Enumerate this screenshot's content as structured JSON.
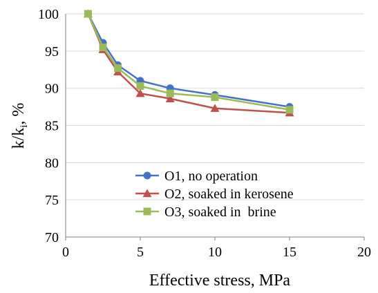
{
  "chart_data": {
    "type": "line",
    "title": "",
    "xlabel": "Effective stress, MPa",
    "ylabel_main": "k/k",
    "ylabel_sub": "i",
    "ylabel_unit": ", %",
    "xlim": [
      0,
      20
    ],
    "ylim": [
      70,
      100
    ],
    "xticks": [
      0,
      5,
      10,
      15,
      20
    ],
    "yticks": [
      70,
      75,
      80,
      85,
      90,
      95,
      100
    ],
    "grid": "horizontal",
    "legend_position": "bottom-left",
    "series": [
      {
        "name": "O1, no operation",
        "color": "#4472c4",
        "marker": "circle",
        "x": [
          1.5,
          2.5,
          3.5,
          5,
          7,
          10,
          15
        ],
        "y": [
          100,
          96.1,
          93.1,
          91.0,
          90.0,
          89.1,
          87.5
        ]
      },
      {
        "name": "O2, soaked in kerosene",
        "color": "#c0504d",
        "marker": "triangle",
        "x": [
          1.5,
          2.5,
          3.5,
          5,
          7,
          10,
          15
        ],
        "y": [
          100,
          95.2,
          92.2,
          89.3,
          88.6,
          87.3,
          86.7
        ]
      },
      {
        "name": "O3, soaked in  brine",
        "color": "#9bbb59",
        "marker": "square",
        "x": [
          1.5,
          2.5,
          3.5,
          5,
          7,
          10,
          15
        ],
        "y": [
          100,
          95.5,
          92.7,
          90.3,
          89.3,
          88.8,
          87.1
        ]
      }
    ]
  }
}
